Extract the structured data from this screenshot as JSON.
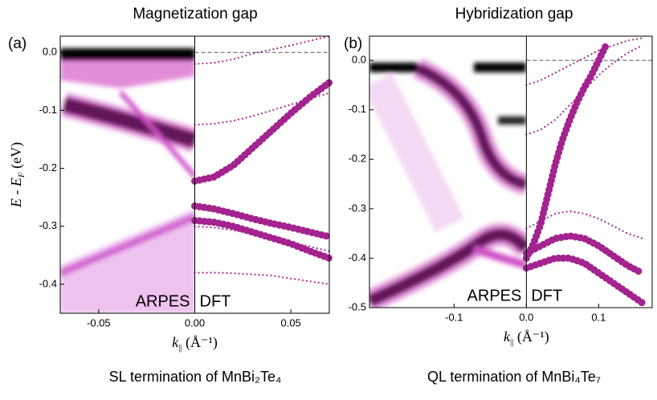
{
  "chart_data": [
    {
      "type": "band",
      "title": "Magnetization gap",
      "panel_label": "(a)",
      "ylabel": {
        "main": "E - E",
        "sub": "F",
        "unit": " (eV)"
      },
      "xlabel": {
        "main": "k",
        "sub": "||",
        "unit": " (Å⁻¹)"
      },
      "left_label": "ARPES",
      "right_label": "DFT",
      "caption": "SL termination of MnBi₂Te₄",
      "xlim": [
        -0.07,
        0.07
      ],
      "ylim": [
        -0.45,
        0.028
      ],
      "xticks": [
        -0.05,
        {
          "value": 0,
          "label": "0.00"
        },
        0.05
      ],
      "yticks": [
        {
          "value": 0,
          "label": "0.0"
        },
        -0.1,
        -0.2,
        -0.3,
        -0.4
      ],
      "series": [
        {
          "color": "#a3238f",
          "style": "thick",
          "x": [
            0,
            0.01,
            0.02,
            0.03,
            0.04,
            0.05,
            0.06,
            0.07
          ],
          "values": [
            -0.222,
            -0.215,
            -0.195,
            -0.165,
            -0.135,
            -0.105,
            -0.077,
            -0.052
          ]
        },
        {
          "color": "#a3238f",
          "style": "thick",
          "x": [
            0,
            0.01,
            0.02,
            0.03,
            0.04,
            0.05,
            0.06,
            0.07
          ],
          "values": [
            -0.265,
            -0.27,
            -0.278,
            -0.287,
            -0.295,
            -0.302,
            -0.31,
            -0.318
          ]
        },
        {
          "color": "#a3238f",
          "style": "thick",
          "x": [
            0,
            0.01,
            0.02,
            0.03,
            0.04,
            0.05,
            0.06,
            0.07
          ],
          "values": [
            -0.29,
            -0.293,
            -0.3,
            -0.31,
            -0.32,
            -0.33,
            -0.343,
            -0.355
          ]
        },
        {
          "color": "#a3238f",
          "style": "thin",
          "x": [
            0,
            0.01,
            0.02,
            0.03,
            0.04,
            0.05,
            0.06,
            0.07
          ],
          "values": [
            -0.125,
            -0.123,
            -0.118,
            -0.11,
            -0.1,
            -0.09,
            -0.08,
            -0.07
          ]
        },
        {
          "color": "#a3238f",
          "style": "thin",
          "x": [
            0,
            0.01,
            0.02,
            0.03,
            0.04,
            0.05,
            0.06,
            0.07
          ],
          "values": [
            -0.02,
            -0.018,
            -0.012,
            -0.002,
            0.005,
            0.012,
            0.02,
            0.028
          ]
        },
        {
          "color": "#a3238f",
          "style": "thin",
          "x": [
            0,
            0.01,
            0.02,
            0.03,
            0.04,
            0.05,
            0.06,
            0.07
          ],
          "values": [
            -0.3,
            -0.302,
            -0.307,
            -0.313,
            -0.32,
            -0.327,
            -0.335,
            -0.343
          ]
        },
        {
          "color": "#a3238f",
          "style": "thin",
          "x": [
            0,
            0.01,
            0.02,
            0.03,
            0.04,
            0.05,
            0.06,
            0.07
          ],
          "values": [
            -0.38,
            -0.38,
            -0.381,
            -0.383,
            -0.385,
            -0.39,
            -0.395,
            -0.4
          ]
        }
      ]
    },
    {
      "type": "band",
      "title": "Hybridization gap",
      "panel_label": "(b)",
      "xlabel": {
        "main": "k",
        "sub": "||",
        "unit": " (Å⁻¹)"
      },
      "left_label": "ARPES",
      "right_label": "DFT",
      "caption": "QL termination of MnBi₄Te₇",
      "xlim": [
        -0.217,
        0.174
      ],
      "ylim": [
        -0.5,
        0.049
      ],
      "xticks": [
        -0.1,
        {
          "value": 0,
          "label": "0.0"
        },
        0.1
      ],
      "yticks": [
        {
          "value": 0,
          "label": "0.0"
        },
        -0.1,
        -0.2,
        -0.3,
        -0.4,
        -0.5
      ],
      "series": [
        {
          "color": "#a3238f",
          "style": "thick",
          "x": [
            0,
            0.01,
            0.02,
            0.03,
            0.04,
            0.05,
            0.06,
            0.07,
            0.08,
            0.09,
            0.1,
            0.11
          ],
          "values": [
            -0.4,
            -0.37,
            -0.33,
            -0.27,
            -0.21,
            -0.16,
            -0.12,
            -0.085,
            -0.055,
            -0.03,
            0.0,
            0.03
          ]
        },
        {
          "color": "#a3238f",
          "style": "thick",
          "x": [
            0,
            0.02,
            0.04,
            0.06,
            0.08,
            0.1,
            0.12,
            0.14,
            0.16
          ],
          "values": [
            -0.42,
            -0.41,
            -0.4,
            -0.4,
            -0.41,
            -0.43,
            -0.45,
            -0.47,
            -0.49
          ]
        },
        {
          "color": "#a3238f",
          "style": "thick",
          "x": [
            0,
            0.02,
            0.04,
            0.06,
            0.08,
            0.1,
            0.12,
            0.14,
            0.16
          ],
          "values": [
            -0.39,
            -0.375,
            -0.36,
            -0.355,
            -0.36,
            -0.375,
            -0.395,
            -0.415,
            -0.43
          ]
        },
        {
          "color": "#a3238f",
          "style": "thin",
          "x": [
            0,
            0.02,
            0.04,
            0.06,
            0.08,
            0.1,
            0.12,
            0.14,
            0.16
          ],
          "values": [
            -0.34,
            -0.325,
            -0.31,
            -0.305,
            -0.31,
            -0.32,
            -0.335,
            -0.35,
            -0.36
          ]
        },
        {
          "color": "#a3238f",
          "style": "thin",
          "x": [
            0,
            0.02,
            0.04,
            0.06,
            0.08,
            0.1,
            0.12,
            0.14,
            0.16
          ],
          "values": [
            -0.05,
            -0.04,
            -0.025,
            -0.01,
            0.005,
            0.02,
            0.03,
            0.04,
            0.045
          ]
        },
        {
          "color": "#a3238f",
          "style": "thin",
          "x": [
            0,
            0.02,
            0.04,
            0.06,
            0.08,
            0.1,
            0.12,
            0.14,
            0.16
          ],
          "values": [
            -0.15,
            -0.14,
            -0.12,
            -0.09,
            -0.06,
            -0.03,
            -0.005,
            0.015,
            0.03
          ]
        }
      ]
    }
  ]
}
